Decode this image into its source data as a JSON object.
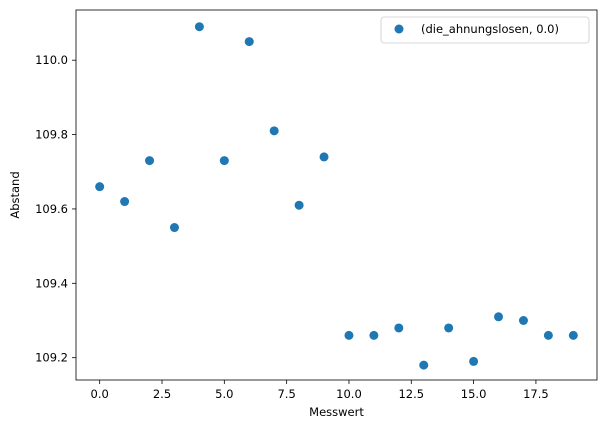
{
  "chart_data": {
    "type": "scatter",
    "xlabel": "Messwert",
    "ylabel": "Abstand",
    "xlim": [
      -0.95,
      19.95
    ],
    "ylim": [
      109.14,
      110.135
    ],
    "x_ticks": [
      0.0,
      2.5,
      5.0,
      7.5,
      10.0,
      12.5,
      15.0,
      17.5
    ],
    "x_tick_labels": [
      "0.0",
      "2.5",
      "5.0",
      "7.5",
      "10.0",
      "12.5",
      "15.0",
      "17.5"
    ],
    "y_ticks": [
      109.2,
      109.4,
      109.6,
      109.8,
      110.0
    ],
    "y_tick_labels": [
      "109.2",
      "109.4",
      "109.6",
      "109.8",
      "110.0"
    ],
    "grid": false,
    "legend_position": "top-right",
    "series": [
      {
        "name": "(die_ahnungslosen, 0.0)",
        "color": "#1f77b4",
        "marker": "circle",
        "x": [
          0,
          1,
          2,
          3,
          4,
          5,
          6,
          7,
          8,
          9,
          10,
          11,
          12,
          13,
          14,
          15,
          16,
          17,
          18,
          19
        ],
        "y": [
          109.66,
          109.62,
          109.73,
          109.55,
          110.09,
          109.73,
          110.05,
          109.81,
          109.61,
          109.74,
          109.26,
          109.26,
          109.28,
          109.18,
          109.28,
          109.19,
          109.31,
          109.3,
          109.26,
          109.26
        ]
      }
    ]
  }
}
